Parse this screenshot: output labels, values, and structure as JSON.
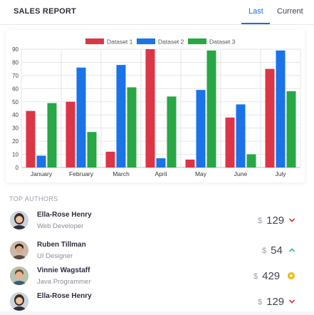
{
  "header": {
    "title": "SALES REPORT",
    "tabs": [
      {
        "label": "Last",
        "active": true
      },
      {
        "label": "Current",
        "active": false
      }
    ],
    "accent": "#1b6fd6"
  },
  "chart_data": {
    "type": "bar",
    "categories": [
      "January",
      "February",
      "March",
      "April",
      "May",
      "June",
      "July"
    ],
    "series": [
      {
        "name": "Dataset 1",
        "color": "#dc3545",
        "values": [
          43,
          50,
          12,
          90,
          6,
          38,
          75
        ]
      },
      {
        "name": "Dataset 2",
        "color": "#1a73e8",
        "values": [
          9,
          76,
          78,
          7,
          59,
          48,
          89
        ]
      },
      {
        "name": "Dataset 3",
        "color": "#28a745",
        "values": [
          49,
          27,
          61,
          54,
          89,
          10,
          58
        ]
      }
    ],
    "ylim": [
      0,
      90
    ],
    "yticks": [
      0,
      10,
      20,
      30,
      40,
      50,
      60,
      70,
      80,
      90
    ],
    "grid": true,
    "legend": "top-center"
  },
  "authors_section": {
    "label": "TOP AUTHORS",
    "items": [
      {
        "name": "Ella-Rose Henry",
        "role": "Web Developer",
        "currency": "$",
        "amount": "129",
        "trend": "down",
        "trend_color": "#dc3545",
        "avatar": "avatar-woman-icon"
      },
      {
        "name": "Ruben Tillman",
        "role": "UI Designer",
        "currency": "$",
        "amount": "54",
        "trend": "up",
        "trend_color": "#20c997",
        "avatar": "avatar-man-icon"
      },
      {
        "name": "Vinnie Wagstaff",
        "role": "Java Programmer",
        "currency": "$",
        "amount": "429",
        "trend": "dot",
        "trend_color": "#f5b800",
        "avatar": "avatar-man-icon"
      },
      {
        "name": "Ella-Rose Henry",
        "role": "",
        "currency": "$",
        "amount": "129",
        "trend": "down",
        "trend_color": "#dc3545",
        "avatar": "avatar-woman-icon"
      }
    ]
  }
}
